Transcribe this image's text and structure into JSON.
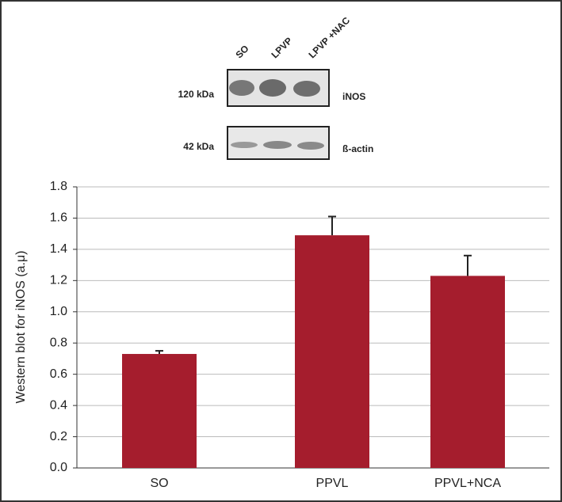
{
  "chart_data": {
    "type": "bar",
    "y_label": "Western blot for iNOS (a.μ)",
    "categories": [
      "SO",
      "PPVL",
      "PPVL+NCA"
    ],
    "values": [
      0.73,
      1.49,
      1.23
    ],
    "errors": [
      0.02,
      0.12,
      0.13
    ],
    "color": "#a51d2d",
    "ylim": [
      0,
      1.8
    ],
    "yticks": [
      {
        "value": 0,
        "label": "0.0"
      },
      0.2,
      0.4,
      0.6,
      0.8,
      {
        "value": 1,
        "label": "1.0"
      },
      1.2,
      1.4,
      1.6,
      1.8
    ],
    "grid": true,
    "blot": {
      "lanes": [
        "SO",
        "LPVP",
        "LPVP +NAC"
      ],
      "bands": [
        {
          "weight": "120 kDa",
          "protein": "iNOS"
        },
        {
          "weight": "42 kDa",
          "protein": "ß-actin"
        }
      ]
    }
  }
}
